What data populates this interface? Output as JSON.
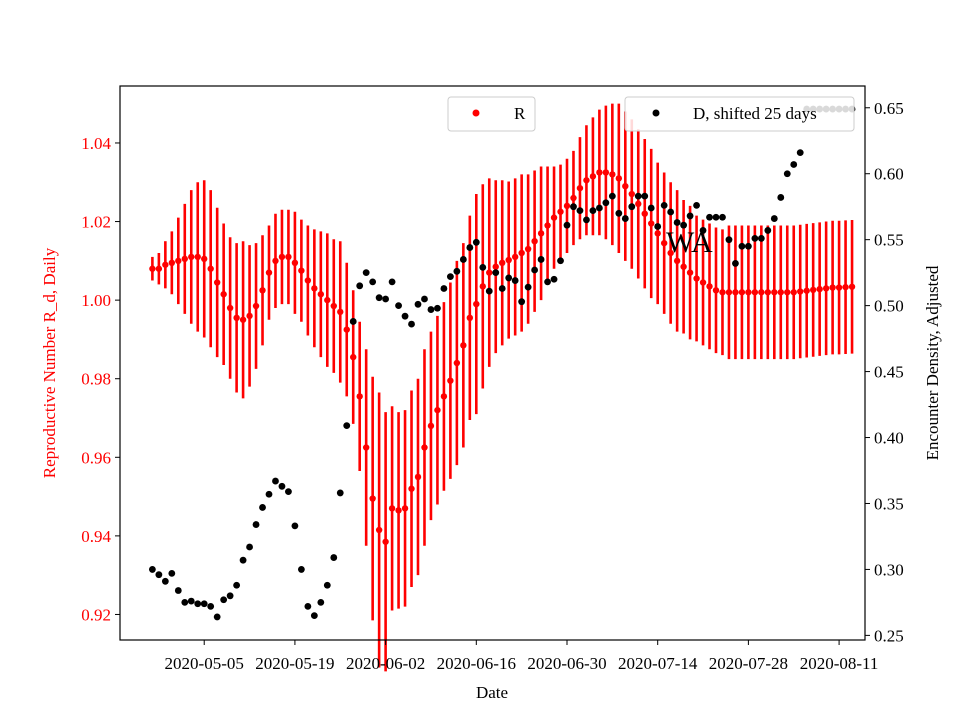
{
  "chart_data": {
    "type": "scatter",
    "xlabel": "Date",
    "ylabel_left": "Reproductive Number R_d, Daily",
    "ylabel_right": "Encounter Density, Adjusted",
    "x_ticks": [
      "2020-05-05",
      "2020-05-19",
      "2020-06-02",
      "2020-06-16",
      "2020-06-30",
      "2020-07-14",
      "2020-07-28",
      "2020-08-11"
    ],
    "x_range": [
      "2020-04-22",
      "2020-08-15"
    ],
    "ylim_left": [
      0.9135,
      1.0545
    ],
    "ylim_right": [
      0.2465,
      0.6665
    ],
    "yticks_left": [
      "0.92",
      "0.94",
      "0.96",
      "0.98",
      "1.00",
      "1.02",
      "1.04"
    ],
    "yticks_right": [
      "0.25",
      "0.30",
      "0.35",
      "0.40",
      "0.45",
      "0.50",
      "0.55",
      "0.60",
      "0.65"
    ],
    "annotation": "WA",
    "series": [
      {
        "name": "R",
        "axis": "left",
        "color": "#ff0000",
        "marker": "dot",
        "error_bars": true,
        "x": [
          "2020-04-27",
          "2020-04-28",
          "2020-04-29",
          "2020-04-30",
          "2020-05-01",
          "2020-05-02",
          "2020-05-03",
          "2020-05-04",
          "2020-05-05",
          "2020-05-06",
          "2020-05-07",
          "2020-05-08",
          "2020-05-09",
          "2020-05-10",
          "2020-05-11",
          "2020-05-12",
          "2020-05-13",
          "2020-05-14",
          "2020-05-15",
          "2020-05-16",
          "2020-05-17",
          "2020-05-18",
          "2020-05-19",
          "2020-05-20",
          "2020-05-21",
          "2020-05-22",
          "2020-05-23",
          "2020-05-24",
          "2020-05-25",
          "2020-05-26",
          "2020-05-27",
          "2020-05-28",
          "2020-05-29",
          "2020-05-30",
          "2020-05-31",
          "2020-06-01",
          "2020-06-02",
          "2020-06-03",
          "2020-06-04",
          "2020-06-05",
          "2020-06-06",
          "2020-06-07",
          "2020-06-08",
          "2020-06-09",
          "2020-06-10",
          "2020-06-11",
          "2020-06-12",
          "2020-06-13",
          "2020-06-14",
          "2020-06-15",
          "2020-06-16",
          "2020-06-17",
          "2020-06-18",
          "2020-06-19",
          "2020-06-20",
          "2020-06-21",
          "2020-06-22",
          "2020-06-23",
          "2020-06-24",
          "2020-06-25",
          "2020-06-26",
          "2020-06-27",
          "2020-06-28",
          "2020-06-29",
          "2020-06-30",
          "2020-07-01",
          "2020-07-02",
          "2020-07-03",
          "2020-07-04",
          "2020-07-05",
          "2020-07-06",
          "2020-07-07",
          "2020-07-08",
          "2020-07-09",
          "2020-07-10",
          "2020-07-11",
          "2020-07-12",
          "2020-07-13",
          "2020-07-14",
          "2020-07-15",
          "2020-07-16",
          "2020-07-17",
          "2020-07-18",
          "2020-07-19",
          "2020-07-20",
          "2020-07-21",
          "2020-07-22",
          "2020-07-23",
          "2020-07-24",
          "2020-07-25",
          "2020-07-26",
          "2020-07-27",
          "2020-07-28",
          "2020-07-29",
          "2020-07-30",
          "2020-07-31",
          "2020-08-01",
          "2020-08-02",
          "2020-08-03",
          "2020-08-04",
          "2020-08-05",
          "2020-08-06",
          "2020-08-07",
          "2020-08-08",
          "2020-08-09",
          "2020-08-10",
          "2020-08-11",
          "2020-08-12",
          "2020-08-13"
        ],
        "y": [
          1.008,
          1.008,
          1.009,
          1.0095,
          1.01,
          1.0105,
          1.011,
          1.011,
          1.0105,
          1.008,
          1.0045,
          1.0015,
          0.998,
          0.9955,
          0.995,
          0.996,
          0.9985,
          1.0025,
          1.007,
          1.01,
          1.011,
          1.011,
          1.0095,
          1.0075,
          1.005,
          1.003,
          1.0015,
          1.0,
          0.9985,
          0.997,
          0.9925,
          0.9855,
          0.9755,
          0.9625,
          0.9495,
          0.9415,
          0.9385,
          0.947,
          0.9465,
          0.947,
          0.952,
          0.955,
          0.9625,
          0.968,
          0.972,
          0.9755,
          0.9795,
          0.984,
          0.9885,
          0.9955,
          0.999,
          1.0035,
          1.007,
          1.0085,
          1.0095,
          1.0102,
          1.011,
          1.012,
          1.013,
          1.015,
          1.017,
          1.019,
          1.021,
          1.0225,
          1.024,
          1.026,
          1.0285,
          1.0305,
          1.0315,
          1.0325,
          1.0325,
          1.032,
          1.031,
          1.029,
          1.027,
          1.0245,
          1.022,
          1.0195,
          1.017,
          1.0145,
          1.012,
          1.01,
          1.0085,
          1.007,
          1.0055,
          1.0045,
          1.0035,
          1.0025,
          1.002,
          1.002,
          1.002,
          1.002,
          1.002,
          1.002,
          1.002,
          1.002,
          1.002,
          1.002,
          1.002,
          1.002,
          1.0022,
          1.0024,
          1.0026,
          1.0028,
          1.003,
          1.0032,
          1.0032,
          1.0033,
          1.0034
        ],
        "yerr": [
          0.003,
          0.004,
          0.006,
          0.008,
          0.011,
          0.014,
          0.017,
          0.019,
          0.02,
          0.02,
          0.019,
          0.018,
          0.018,
          0.019,
          0.02,
          0.018,
          0.016,
          0.014,
          0.012,
          0.012,
          0.012,
          0.012,
          0.013,
          0.013,
          0.014,
          0.015,
          0.016,
          0.017,
          0.017,
          0.018,
          0.017,
          0.017,
          0.019,
          0.025,
          0.031,
          0.035,
          0.033,
          0.026,
          0.025,
          0.025,
          0.025,
          0.025,
          0.025,
          0.024,
          0.024,
          0.024,
          0.025,
          0.026,
          0.026,
          0.026,
          0.028,
          0.026,
          0.024,
          0.022,
          0.021,
          0.02,
          0.02,
          0.02,
          0.019,
          0.018,
          0.017,
          0.015,
          0.013,
          0.012,
          0.012,
          0.012,
          0.013,
          0.014,
          0.015,
          0.016,
          0.017,
          0.018,
          0.019,
          0.019,
          0.019,
          0.019,
          0.019,
          0.019,
          0.018,
          0.018,
          0.018,
          0.018,
          0.017,
          0.017,
          0.016,
          0.016,
          0.016,
          0.016,
          0.016,
          0.017,
          0.017,
          0.017,
          0.017,
          0.017,
          0.017,
          0.017,
          0.017,
          0.017,
          0.017,
          0.017,
          0.017,
          0.017,
          0.017,
          0.017,
          0.017,
          0.017,
          0.017,
          0.017,
          0.017
        ]
      },
      {
        "name": "D, shifted 25 days",
        "axis": "right",
        "color": "#000000",
        "marker": "dot",
        "x": [
          "2020-04-27",
          "2020-04-28",
          "2020-04-29",
          "2020-04-30",
          "2020-05-01",
          "2020-05-02",
          "2020-05-03",
          "2020-05-04",
          "2020-05-05",
          "2020-05-06",
          "2020-05-07",
          "2020-05-08",
          "2020-05-09",
          "2020-05-10",
          "2020-05-11",
          "2020-05-12",
          "2020-05-13",
          "2020-05-14",
          "2020-05-15",
          "2020-05-16",
          "2020-05-17",
          "2020-05-18",
          "2020-05-19",
          "2020-05-20",
          "2020-05-21",
          "2020-05-22",
          "2020-05-23",
          "2020-05-24",
          "2020-05-25",
          "2020-05-26",
          "2020-05-27",
          "2020-05-28",
          "2020-05-29",
          "2020-05-30",
          "2020-05-31",
          "2020-06-01",
          "2020-06-02",
          "2020-06-03",
          "2020-06-04",
          "2020-06-05",
          "2020-06-06",
          "2020-06-07",
          "2020-06-08",
          "2020-06-09",
          "2020-06-10",
          "2020-06-11",
          "2020-06-12",
          "2020-06-13",
          "2020-06-14",
          "2020-06-15",
          "2020-06-16",
          "2020-06-17",
          "2020-06-18",
          "2020-06-19",
          "2020-06-20",
          "2020-06-21",
          "2020-06-22",
          "2020-06-23",
          "2020-06-24",
          "2020-06-25",
          "2020-06-26",
          "2020-06-27",
          "2020-06-28",
          "2020-06-29",
          "2020-06-30",
          "2020-07-01",
          "2020-07-02",
          "2020-07-03",
          "2020-07-04",
          "2020-07-05",
          "2020-07-06",
          "2020-07-07",
          "2020-07-08",
          "2020-07-09",
          "2020-07-10",
          "2020-07-11",
          "2020-07-12",
          "2020-07-13",
          "2020-07-14",
          "2020-07-15",
          "2020-07-16",
          "2020-07-17",
          "2020-07-18",
          "2020-07-19",
          "2020-07-20",
          "2020-07-21",
          "2020-07-22",
          "2020-07-23",
          "2020-07-24",
          "2020-07-25",
          "2020-07-26",
          "2020-07-27",
          "2020-07-28",
          "2020-07-29",
          "2020-07-30",
          "2020-07-31",
          "2020-08-01",
          "2020-08-02",
          "2020-08-03",
          "2020-08-04",
          "2020-08-05",
          "2020-08-06",
          "2020-08-07",
          "2020-08-08",
          "2020-08-09",
          "2020-08-10",
          "2020-08-11",
          "2020-08-12",
          "2020-08-13"
        ],
        "y": [
          0.3,
          0.296,
          0.291,
          0.297,
          0.284,
          0.275,
          0.276,
          0.274,
          0.274,
          0.272,
          0.264,
          0.277,
          0.28,
          0.288,
          0.307,
          0.317,
          0.334,
          0.347,
          0.357,
          0.367,
          0.363,
          0.359,
          0.333,
          0.3,
          0.272,
          0.265,
          0.275,
          0.288,
          0.309,
          0.358,
          0.409,
          0.488,
          0.515,
          0.525,
          0.518,
          0.506,
          0.505,
          0.518,
          0.5,
          0.492,
          0.486,
          0.501,
          0.505,
          0.497,
          0.498,
          0.513,
          0.522,
          0.526,
          0.535,
          0.544,
          0.548,
          0.529,
          0.511,
          0.525,
          0.513,
          0.521,
          0.519,
          0.503,
          0.514,
          0.527,
          0.535,
          0.518,
          0.52,
          0.534,
          0.561,
          0.575,
          0.572,
          0.565,
          0.572,
          0.574,
          0.578,
          0.583,
          0.57,
          0.566,
          0.575,
          0.583,
          0.583,
          0.574,
          0.56,
          0.576,
          0.571,
          0.563,
          0.561,
          0.568,
          0.576,
          0.557,
          0.567,
          0.567,
          0.567,
          0.55,
          0.532,
          0.545,
          0.545,
          0.551,
          0.551,
          0.557,
          0.566,
          0.582,
          0.6,
          0.607,
          0.616,
          0.649,
          0.649,
          0.649,
          0.649,
          0.649,
          0.649,
          0.649,
          0.649
        ]
      }
    ]
  }
}
